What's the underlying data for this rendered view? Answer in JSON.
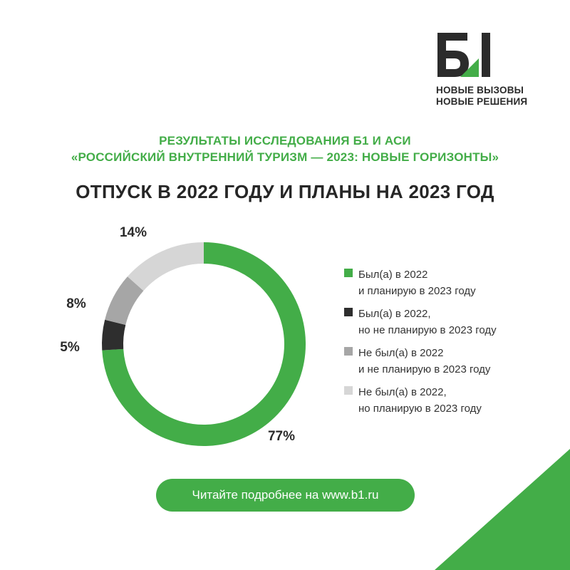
{
  "brand": {
    "slogan_line1": "НОВЫЕ ВЫЗОВЫ",
    "slogan_line2": "НОВЫЕ РЕШЕНИЯ"
  },
  "header": {
    "subtitle_line1": "РЕЗУЛЬТАТЫ ИССЛЕДОВАНИЯ Б1 И АСИ",
    "subtitle_line2": "«РОССИЙСКИЙ ВНУТРЕННИЙ ТУРИЗМ — 2023: НОВЫЕ ГОРИЗОНТЫ»",
    "title": "ОТПУСК В 2022 ГОДУ И ПЛАНЫ НА 2023 ГОД"
  },
  "colors": {
    "green": "#43ad48",
    "dark": "#2e2e2e",
    "gray": "#a6a6a6",
    "light_gray": "#d6d6d6"
  },
  "chart_data": {
    "type": "pie",
    "style": "donut",
    "legend_position": "right",
    "categories": [
      "Был(а) в 2022\nи планирую в 2023 году",
      "Был(а) в 2022,\nно не планирую в 2023 году",
      "Не был(а) в 2022\nи не планирую в 2023 году",
      "Не был(а) в 2022,\nно планирую в 2023 году"
    ],
    "values": [
      77,
      5,
      8,
      14
    ],
    "labels": [
      "77%",
      "5%",
      "8%",
      "14%"
    ],
    "colors": [
      "#43ad48",
      "#2e2e2e",
      "#a6a6a6",
      "#d6d6d6"
    ]
  },
  "cta": {
    "label": "Читайте подробнее на www.b1.ru"
  }
}
